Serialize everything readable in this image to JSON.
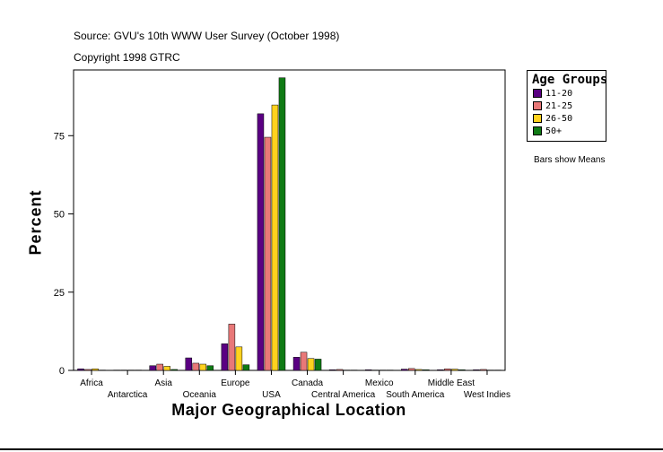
{
  "source": {
    "line1": "Source: GVU's 10th WWW User Survey (October 1998)",
    "line2": "Copyright 1998 GTRC"
  },
  "note": "Bars show Means",
  "colors": {
    "11-20": "#5a0082",
    "21-25": "#e87878",
    "26-50": "#ffd21e",
    "50+": "#0f7a14"
  },
  "chart_data": {
    "type": "bar",
    "xlabel": "Major Geographical Location",
    "ylabel": "Percent",
    "ylim": [
      0,
      96
    ],
    "yticks": [
      0,
      25,
      50,
      75
    ],
    "legend_title": "Age Groups",
    "legend_placement": "right",
    "categories": [
      "Africa",
      "Antarctica",
      "Asia",
      "Oceania",
      "Europe",
      "USA",
      "Canada",
      "Central America",
      "Mexico",
      "South America",
      "Middle East",
      "West Indies"
    ],
    "series": [
      {
        "name": "11-20",
        "color": "#5a0082",
        "values": [
          0.5,
          0.1,
          1.5,
          4.0,
          8.5,
          82.0,
          4.2,
          0.2,
          0.2,
          0.4,
          0.2,
          0.2
        ]
      },
      {
        "name": "21-25",
        "color": "#e87878",
        "values": [
          0.3,
          0.1,
          2.0,
          2.3,
          14.8,
          74.5,
          5.8,
          0.3,
          0.1,
          0.6,
          0.5,
          0.3
        ]
      },
      {
        "name": "26-50",
        "color": "#ffd21e",
        "values": [
          0.5,
          0.1,
          1.3,
          2.0,
          7.5,
          84.8,
          3.8,
          0.1,
          0.1,
          0.3,
          0.4,
          0.1
        ]
      },
      {
        "name": "50+",
        "color": "#0f7a14",
        "values": [
          0.1,
          0.1,
          0.3,
          1.5,
          1.8,
          93.5,
          3.6,
          0.1,
          0.1,
          0.2,
          0.2,
          0.1
        ]
      }
    ]
  }
}
